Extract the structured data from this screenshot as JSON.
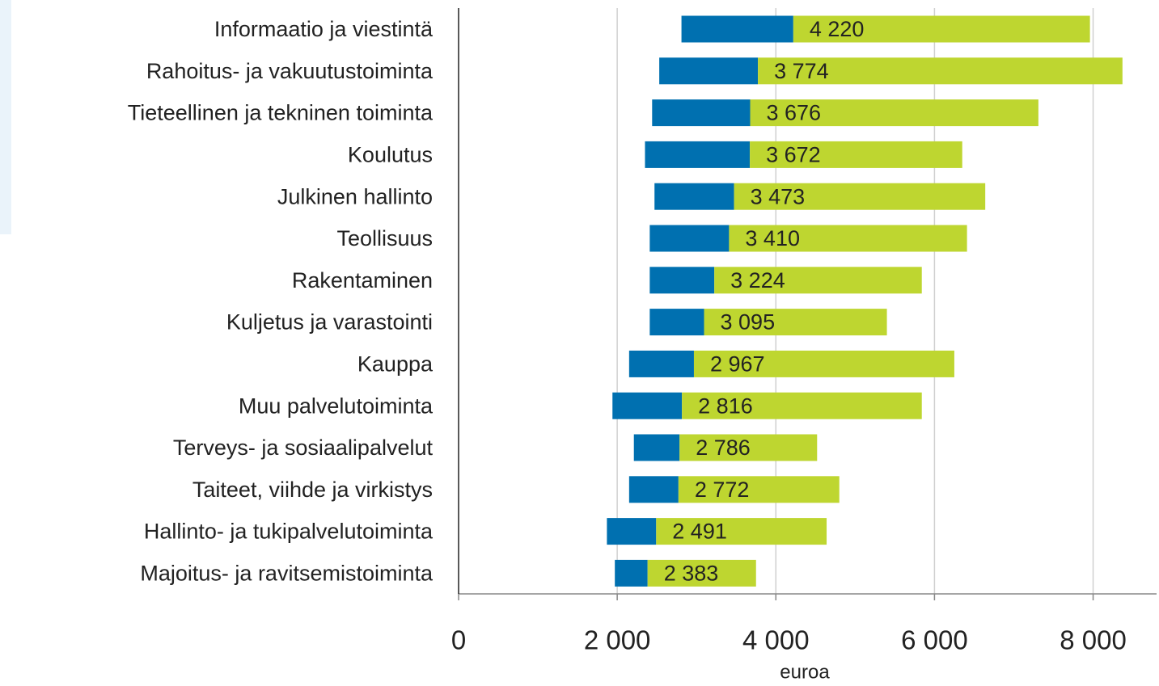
{
  "chart_data": {
    "type": "range-bar",
    "x_label": "euroa",
    "categories": [
      "Informaatio ja viestintä",
      "Rahoitus- ja vakuutustoiminta",
      "Tieteellinen ja tekninen toiminta",
      "Koulutus",
      "Julkinen hallinto",
      "Teollisuus",
      "Rakentaminen",
      "Kuljetus ja varastointi",
      "Kauppa",
      "Muu palvelutoiminta",
      "Terveys- ja sosiaalipalvelut",
      "Taiteet, viihde ja virkistys",
      "Hallinto- ja tukipalvelutoiminta",
      "Majoitus- ja ravitsemistoiminta"
    ],
    "low": [
      2810,
      2530,
      2440,
      2350,
      2470,
      2410,
      2410,
      2410,
      2150,
      1940,
      2210,
      2150,
      1870,
      1970
    ],
    "median": [
      4220,
      3774,
      3676,
      3672,
      3473,
      3410,
      3224,
      3095,
      2967,
      2816,
      2786,
      2772,
      2491,
      2383
    ],
    "value_labels": [
      "4 220",
      "3 774",
      "3 676",
      "3 672",
      "3 473",
      "3 410",
      "3 224",
      "3 095",
      "2 967",
      "2 816",
      "2 786",
      "2 772",
      "2 491",
      "2 383"
    ],
    "high": [
      7960,
      8370,
      7310,
      6350,
      6640,
      6410,
      5840,
      5400,
      6250,
      5840,
      4520,
      4800,
      4640,
      3750
    ],
    "low_color": "#0070b0",
    "high_color": "#bed630",
    "xlim": [
      0,
      8800
    ],
    "xticks": [
      0,
      {
        "value": 2000,
        "label": "2 000"
      },
      {
        "value": 4000,
        "label": "4 000"
      },
      {
        "value": 6000,
        "label": "6 000"
      },
      {
        "value": 8000,
        "label": "8 000"
      }
    ],
    "grid": true
  }
}
